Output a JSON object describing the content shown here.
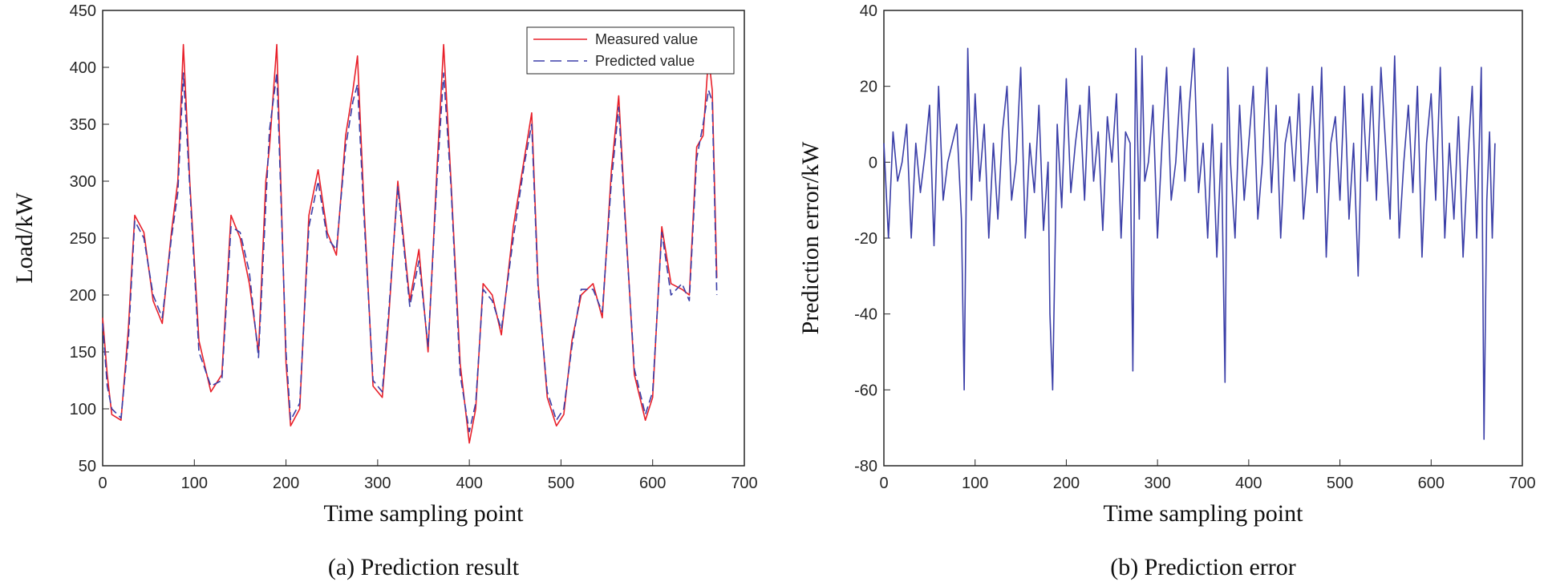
{
  "colors": {
    "measured": "#e8202a",
    "predicted": "#3b3fa8",
    "error": "#3b3fa8",
    "axis": "#262626"
  },
  "chart_data": [
    {
      "type": "line",
      "caption": "(a) Prediction result",
      "xlabel": "Time sampling point",
      "ylabel": "Load/kW",
      "xlim": [
        0,
        700
      ],
      "ylim": [
        50,
        450
      ],
      "xticks": [
        0,
        100,
        200,
        300,
        400,
        500,
        600,
        700
      ],
      "yticks": [
        50,
        100,
        150,
        200,
        250,
        300,
        350,
        400,
        450
      ],
      "legend_position": "top-right",
      "series": [
        {
          "name": "Measured value",
          "style": "solid",
          "x": [
            0,
            5,
            10,
            20,
            28,
            35,
            45,
            55,
            65,
            75,
            82,
            88,
            95,
            105,
            118,
            130,
            140,
            150,
            160,
            170,
            178,
            182,
            190,
            200,
            205,
            215,
            225,
            235,
            245,
            255,
            265,
            273,
            278,
            285,
            295,
            305,
            312,
            322,
            335,
            345,
            355,
            365,
            372,
            380,
            390,
            400,
            407,
            415,
            425,
            435,
            448,
            460,
            468,
            475,
            485,
            495,
            503,
            512,
            522,
            535,
            545,
            555,
            563,
            570,
            580,
            592,
            600,
            610,
            620,
            632,
            640,
            648,
            655,
            661,
            665,
            670
          ],
          "values": [
            180,
            130,
            95,
            90,
            170,
            270,
            255,
            195,
            175,
            255,
            300,
            420,
            300,
            160,
            115,
            130,
            270,
            250,
            210,
            150,
            300,
            330,
            420,
            140,
            85,
            100,
            270,
            310,
            255,
            235,
            340,
            380,
            410,
            280,
            120,
            110,
            180,
            300,
            195,
            240,
            150,
            315,
            420,
            300,
            140,
            70,
            100,
            210,
            200,
            165,
            260,
            320,
            360,
            210,
            110,
            85,
            95,
            160,
            200,
            210,
            180,
            310,
            375,
            270,
            130,
            90,
            110,
            260,
            210,
            205,
            200,
            330,
            340,
            410,
            380,
            215
          ]
        },
        {
          "name": "Predicted value",
          "style": "dashed",
          "x": [
            0,
            5,
            10,
            20,
            28,
            35,
            45,
            55,
            65,
            75,
            82,
            88,
            95,
            105,
            118,
            130,
            140,
            150,
            160,
            170,
            178,
            182,
            190,
            200,
            205,
            215,
            225,
            235,
            245,
            255,
            265,
            273,
            278,
            285,
            295,
            305,
            312,
            322,
            335,
            345,
            355,
            365,
            372,
            380,
            390,
            400,
            407,
            415,
            425,
            435,
            448,
            460,
            468,
            475,
            485,
            495,
            503,
            512,
            522,
            535,
            545,
            555,
            563,
            570,
            580,
            592,
            600,
            610,
            620,
            632,
            640,
            648,
            655,
            661,
            665,
            670
          ],
          "values": [
            175,
            120,
            100,
            92,
            160,
            265,
            250,
            200,
            180,
            250,
            290,
            395,
            295,
            150,
            120,
            125,
            260,
            255,
            220,
            145,
            280,
            345,
            395,
            150,
            90,
            105,
            260,
            300,
            250,
            240,
            330,
            370,
            385,
            270,
            125,
            115,
            185,
            295,
            190,
            230,
            155,
            305,
            395,
            295,
            130,
            80,
            105,
            205,
            195,
            170,
            250,
            315,
            350,
            205,
            115,
            90,
            100,
            155,
            205,
            205,
            185,
            300,
            365,
            265,
            135,
            95,
            115,
            255,
            200,
            210,
            195,
            320,
            350,
            380,
            370,
            200
          ]
        }
      ]
    },
    {
      "type": "line",
      "caption": "(b) Prediction error",
      "xlabel": "Time sampling point",
      "ylabel": "Prediction error/kW",
      "xlim": [
        0,
        700
      ],
      "ylim": [
        -80,
        40
      ],
      "xticks": [
        0,
        100,
        200,
        300,
        400,
        500,
        600,
        700
      ],
      "yticks": [
        -80,
        -60,
        -40,
        -20,
        0,
        20,
        40
      ],
      "series": [
        {
          "name": "Prediction error",
          "style": "solid",
          "x": [
            0,
            5,
            10,
            15,
            20,
            25,
            30,
            35,
            40,
            45,
            50,
            55,
            60,
            65,
            70,
            75,
            80,
            85,
            88,
            92,
            96,
            100,
            105,
            110,
            115,
            120,
            125,
            130,
            135,
            140,
            145,
            150,
            155,
            160,
            165,
            170,
            175,
            180,
            182,
            185,
            190,
            195,
            200,
            205,
            210,
            215,
            220,
            225,
            230,
            235,
            240,
            245,
            250,
            255,
            260,
            265,
            270,
            273,
            276,
            280,
            283,
            286,
            290,
            295,
            300,
            305,
            310,
            315,
            320,
            325,
            330,
            335,
            340,
            345,
            350,
            355,
            360,
            365,
            370,
            374,
            377,
            380,
            385,
            390,
            395,
            400,
            405,
            410,
            415,
            420,
            425,
            430,
            435,
            440,
            445,
            450,
            455,
            460,
            465,
            470,
            475,
            480,
            485,
            490,
            495,
            500,
            505,
            510,
            515,
            520,
            525,
            530,
            535,
            540,
            545,
            550,
            555,
            560,
            565,
            570,
            575,
            580,
            585,
            590,
            595,
            600,
            605,
            610,
            615,
            620,
            625,
            630,
            635,
            640,
            645,
            650,
            655,
            658,
            661,
            664,
            667,
            670
          ],
          "values": [
            5,
            -20,
            8,
            -5,
            0,
            10,
            -20,
            5,
            -8,
            2,
            15,
            -22,
            20,
            -10,
            0,
            5,
            10,
            -15,
            -60,
            30,
            -10,
            18,
            -5,
            10,
            -20,
            5,
            -15,
            8,
            20,
            -10,
            0,
            25,
            -20,
            5,
            -8,
            15,
            -18,
            0,
            -40,
            -60,
            10,
            -12,
            22,
            -8,
            5,
            15,
            -10,
            20,
            -5,
            8,
            -18,
            12,
            0,
            18,
            -20,
            8,
            5,
            -55,
            30,
            -15,
            28,
            -5,
            0,
            15,
            -20,
            5,
            25,
            -10,
            0,
            20,
            -5,
            15,
            30,
            -8,
            5,
            -20,
            10,
            -25,
            5,
            -58,
            25,
            0,
            -20,
            15,
            -10,
            5,
            20,
            -15,
            0,
            25,
            -8,
            15,
            -20,
            5,
            12,
            -5,
            18,
            -15,
            0,
            20,
            -8,
            25,
            -25,
            5,
            12,
            -10,
            20,
            -15,
            5,
            -30,
            18,
            -5,
            20,
            -10,
            25,
            5,
            -15,
            28,
            -20,
            0,
            15,
            -8,
            20,
            -25,
            5,
            18,
            -10,
            25,
            -20,
            5,
            -15,
            12,
            -25,
            0,
            20,
            -20,
            25,
            -73,
            -10,
            8,
            -20,
            5
          ]
        }
      ]
    }
  ]
}
